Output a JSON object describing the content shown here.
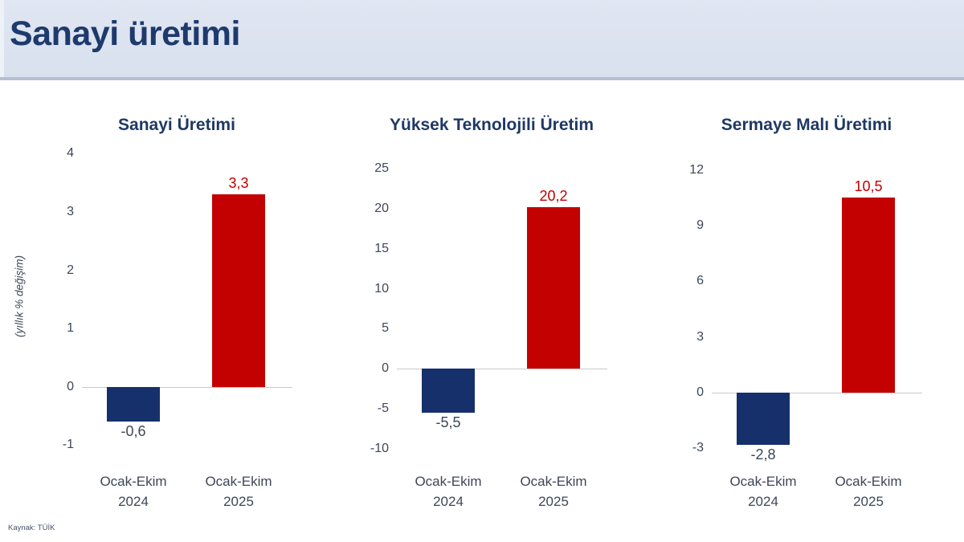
{
  "header": {
    "title": "Sanayi üretimi"
  },
  "footer": {
    "source": "Kaynak: TÜİK"
  },
  "y_axis_label": "(yıllık % değişim)",
  "colors": {
    "navy_bar": "#16306c",
    "red_bar": "#c40101",
    "red_label": "#c00000",
    "dark_label": "#3d4757",
    "title_navy": "#1f3864",
    "header_bg": "#dde4f0",
    "zero_line": "#c9c9c9"
  },
  "chart_data": [
    {
      "type": "bar",
      "title": "Sanayi Üretimi",
      "categories": [
        [
          "Ocak-Ekim",
          "2024"
        ],
        [
          "Ocak-Ekim",
          "2025"
        ]
      ],
      "values": [
        -0.6,
        3.3
      ],
      "value_labels": [
        "-0,6",
        "3,3"
      ],
      "value_label_colors": [
        "#3d4757",
        "#c00000"
      ],
      "bar_colors": [
        "#16306c",
        "#c40101"
      ],
      "ylabel": "(yıllık % değişim)",
      "xlabel": "",
      "ticks": [
        4,
        3,
        2,
        1,
        0,
        -1
      ],
      "ylim": [
        -1.2,
        4.1
      ],
      "grid": false,
      "legend": null
    },
    {
      "type": "bar",
      "title": "Yüksek Teknolojili Üretim",
      "categories": [
        [
          "Ocak-Ekim",
          "2024"
        ],
        [
          "Ocak-Ekim",
          "2025"
        ]
      ],
      "values": [
        -5.5,
        20.2
      ],
      "value_labels": [
        "-5,5",
        "20,2"
      ],
      "value_label_colors": [
        "#3d4757",
        "#c00000"
      ],
      "bar_colors": [
        "#16306c",
        "#c40101"
      ],
      "ylabel": "",
      "xlabel": "",
      "ticks": [
        25,
        20,
        15,
        10,
        5,
        0,
        -5,
        -10
      ],
      "ylim": [
        -11.0,
        27.6
      ],
      "grid": false,
      "legend": null
    },
    {
      "type": "bar",
      "title": "Sermaye Malı Üretimi",
      "categories": [
        [
          "Ocak-Ekim",
          "2024"
        ],
        [
          "Ocak-Ekim",
          "2025"
        ]
      ],
      "values": [
        -2.8,
        10.5
      ],
      "value_labels": [
        "-2,8",
        "10,5"
      ],
      "value_label_colors": [
        "#3d4757",
        "#c00000"
      ],
      "bar_colors": [
        "#16306c",
        "#c40101"
      ],
      "ylabel": "",
      "xlabel": "",
      "ticks": [
        12,
        9,
        6,
        3,
        0,
        -3
      ],
      "ylim": [
        -3.46,
        13.2
      ],
      "grid": false,
      "legend": null
    }
  ]
}
